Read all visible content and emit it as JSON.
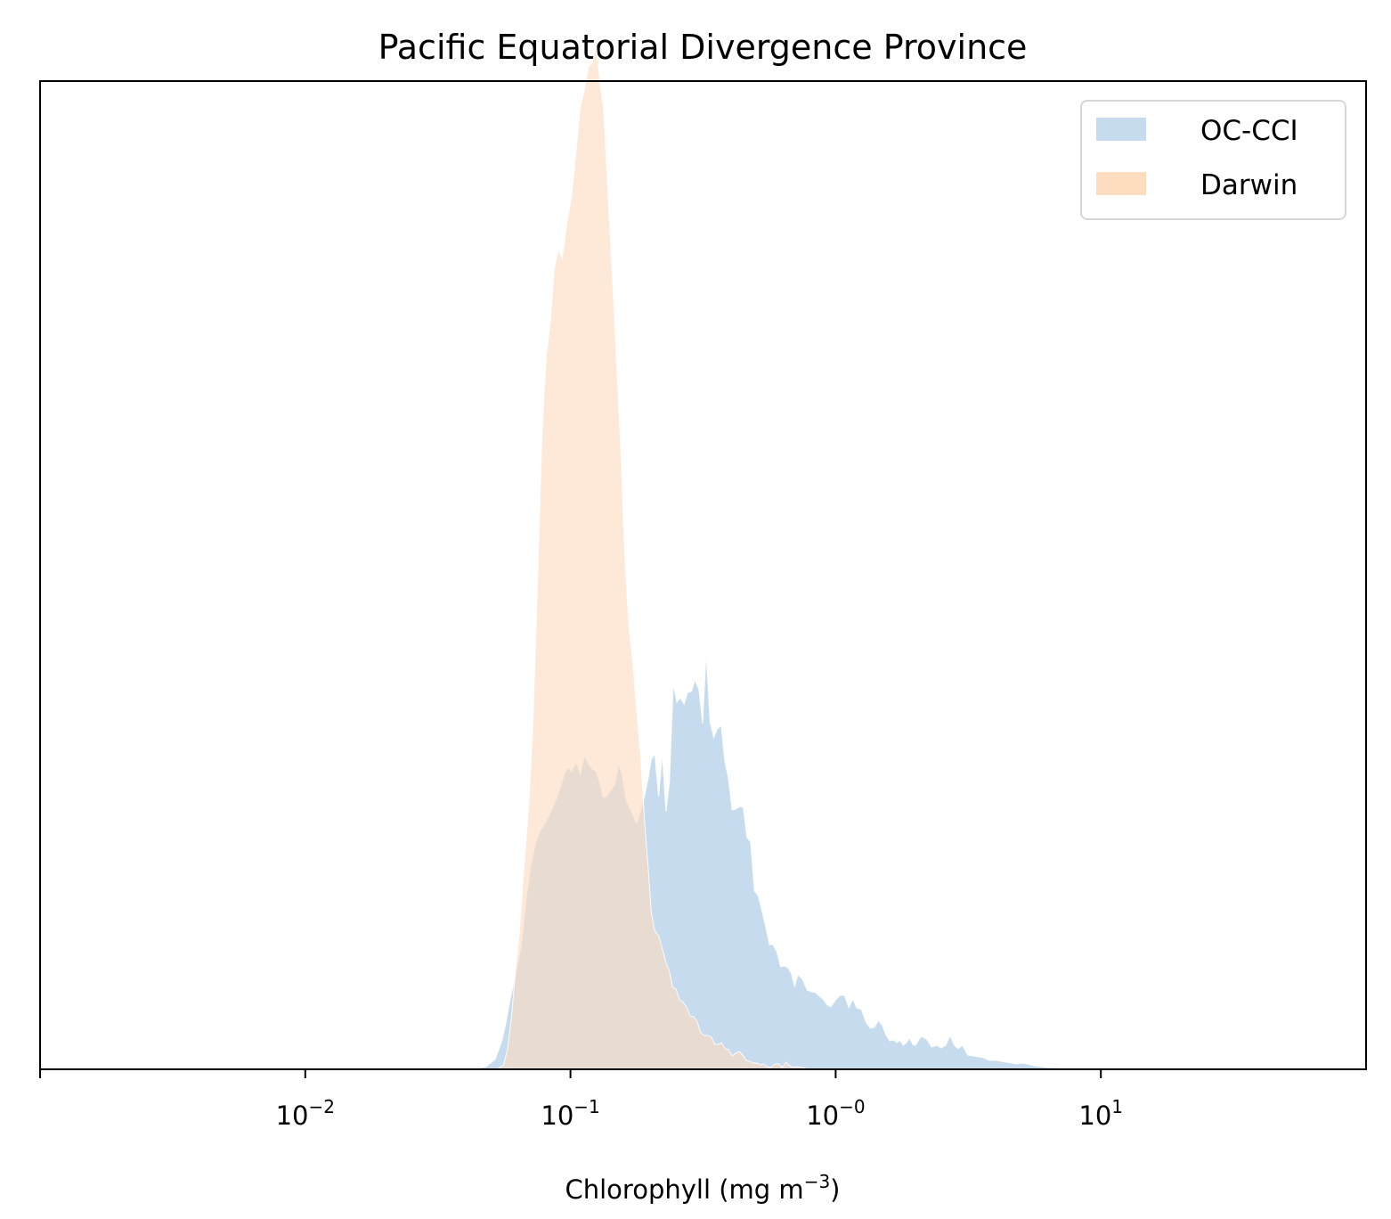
{
  "chart_data": {
    "type": "area",
    "title": "Pacific Equatorial Divergence Province",
    "xlabel": {
      "base": "Chlorophyll  (mg m",
      "exponent": "−3",
      "suffix": ")"
    },
    "ylabel": "",
    "xscale": "log",
    "xlim": [
      0.001,
      100
    ],
    "yticks_visible": false,
    "grid": false,
    "legend_position": "top-right",
    "x_ticks": [
      {
        "value": 0.01,
        "base": "10",
        "exponent": "−2"
      },
      {
        "value": 0.1,
        "base": "10",
        "exponent": "−1"
      },
      {
        "value": 1,
        "base": "10",
        "exponent": "−0"
      },
      {
        "value": 10,
        "base": "10",
        "exponent": "1"
      }
    ],
    "series": [
      {
        "name": "OC-CCI",
        "color": "#c6dbed",
        "points": [
          [
            0.03,
            0
          ],
          [
            0.044,
            1
          ],
          [
            0.048,
            3
          ],
          [
            0.052,
            11
          ],
          [
            0.055,
            31
          ],
          [
            0.057,
            51
          ],
          [
            0.059,
            76
          ],
          [
            0.061,
            96
          ],
          [
            0.063,
            116
          ],
          [
            0.065,
            136
          ],
          [
            0.068,
            190
          ],
          [
            0.071,
            230
          ],
          [
            0.074,
            255
          ],
          [
            0.077,
            268
          ],
          [
            0.08,
            275
          ],
          [
            0.083,
            285
          ],
          [
            0.086,
            295
          ],
          [
            0.089,
            305
          ],
          [
            0.092,
            318
          ],
          [
            0.095,
            332
          ],
          [
            0.098,
            339
          ],
          [
            0.101,
            334
          ],
          [
            0.105,
            345
          ],
          [
            0.109,
            331
          ],
          [
            0.113,
            352
          ],
          [
            0.117,
            343
          ],
          [
            0.121,
            337
          ],
          [
            0.125,
            334
          ],
          [
            0.129,
            322
          ],
          [
            0.133,
            305
          ],
          [
            0.137,
            306
          ],
          [
            0.142,
            313
          ],
          [
            0.147,
            320
          ],
          [
            0.152,
            343
          ],
          [
            0.157,
            330
          ],
          [
            0.162,
            302
          ],
          [
            0.167,
            294
          ],
          [
            0.172,
            285
          ],
          [
            0.178,
            276
          ],
          [
            0.184,
            291
          ],
          [
            0.19,
            306
          ],
          [
            0.196,
            325
          ],
          [
            0.202,
            348
          ],
          [
            0.208,
            354
          ],
          [
            0.215,
            306
          ],
          [
            0.222,
            354
          ],
          [
            0.229,
            289
          ],
          [
            0.236,
            322
          ],
          [
            0.244,
            432
          ],
          [
            0.252,
            412
          ],
          [
            0.26,
            417
          ],
          [
            0.268,
            410
          ],
          [
            0.277,
            423
          ],
          [
            0.286,
            424
          ],
          [
            0.295,
            437
          ],
          [
            0.305,
            426
          ],
          [
            0.315,
            388
          ],
          [
            0.325,
            468
          ],
          [
            0.336,
            390
          ],
          [
            0.347,
            372
          ],
          [
            0.358,
            382
          ],
          [
            0.37,
            386
          ],
          [
            0.382,
            346
          ],
          [
            0.394,
            327
          ],
          [
            0.407,
            291
          ],
          [
            0.42,
            292
          ],
          [
            0.434,
            295
          ],
          [
            0.448,
            294
          ],
          [
            0.463,
            260
          ],
          [
            0.478,
            255
          ],
          [
            0.494,
            200
          ],
          [
            0.51,
            195
          ],
          [
            0.527,
            178
          ],
          [
            0.544,
            161
          ],
          [
            0.562,
            140
          ],
          [
            0.58,
            140
          ],
          [
            0.6,
            132
          ],
          [
            0.62,
            115
          ],
          [
            0.64,
            116
          ],
          [
            0.66,
            114
          ],
          [
            0.68,
            108
          ],
          [
            0.7,
            93
          ],
          [
            0.72,
            106
          ],
          [
            0.75,
            101
          ],
          [
            0.78,
            89
          ],
          [
            0.81,
            87
          ],
          [
            0.84,
            86
          ],
          [
            0.87,
            82
          ],
          [
            0.9,
            78
          ],
          [
            0.93,
            72
          ],
          [
            0.96,
            70
          ],
          [
            1.0,
            78
          ],
          [
            1.04,
            83
          ],
          [
            1.08,
            83
          ],
          [
            1.12,
            69
          ],
          [
            1.16,
            79
          ],
          [
            1.2,
            69
          ],
          [
            1.25,
            67
          ],
          [
            1.3,
            53
          ],
          [
            1.35,
            46
          ],
          [
            1.4,
            47
          ],
          [
            1.45,
            55
          ],
          [
            1.5,
            49
          ],
          [
            1.55,
            38
          ],
          [
            1.6,
            32
          ],
          [
            1.65,
            33
          ],
          [
            1.7,
            30
          ],
          [
            1.75,
            32
          ],
          [
            1.8,
            27
          ],
          [
            1.85,
            30
          ],
          [
            1.9,
            35
          ],
          [
            1.95,
            28
          ],
          [
            2.0,
            27
          ],
          [
            2.1,
            37
          ],
          [
            2.2,
            34
          ],
          [
            2.3,
            25
          ],
          [
            2.4,
            27
          ],
          [
            2.5,
            24
          ],
          [
            2.6,
            27
          ],
          [
            2.7,
            38
          ],
          [
            2.8,
            27
          ],
          [
            2.9,
            23
          ],
          [
            3.0,
            27
          ],
          [
            3.15,
            16
          ],
          [
            3.3,
            15
          ],
          [
            3.45,
            14
          ],
          [
            3.6,
            13
          ],
          [
            3.8,
            10
          ],
          [
            4.0,
            10
          ],
          [
            4.2,
            9
          ],
          [
            4.4,
            8
          ],
          [
            4.6,
            7
          ],
          [
            4.8,
            6
          ],
          [
            5.0,
            7
          ],
          [
            5.3,
            6
          ],
          [
            5.6,
            4
          ],
          [
            6.0,
            3
          ],
          [
            6.4,
            2
          ],
          [
            6.8,
            2
          ],
          [
            7.2,
            1
          ],
          [
            7.7,
            1
          ],
          [
            8.2,
            1
          ],
          [
            8.7,
            1
          ],
          [
            9.3,
            1
          ],
          [
            10.0,
            0
          ]
        ]
      },
      {
        "name": "Darwin",
        "color": "#fddcc0",
        "points": [
          [
            0.04,
            0
          ],
          [
            0.053,
            0
          ],
          [
            0.056,
            5
          ],
          [
            0.058,
            24
          ],
          [
            0.06,
            60
          ],
          [
            0.062,
            110
          ],
          [
            0.064,
            150
          ],
          [
            0.066,
            206
          ],
          [
            0.068,
            255
          ],
          [
            0.07,
            310
          ],
          [
            0.072,
            380
          ],
          [
            0.075,
            540
          ],
          [
            0.078,
            710
          ],
          [
            0.081,
            800
          ],
          [
            0.084,
            840
          ],
          [
            0.087,
            900
          ],
          [
            0.09,
            920
          ],
          [
            0.093,
            910
          ],
          [
            0.097,
            950
          ],
          [
            0.101,
            980
          ],
          [
            0.105,
            1030
          ],
          [
            0.109,
            1080
          ],
          [
            0.113,
            1100
          ],
          [
            0.117,
            1125
          ],
          [
            0.121,
            1130
          ],
          [
            0.125,
            1150
          ],
          [
            0.129,
            1110
          ],
          [
            0.133,
            1080
          ],
          [
            0.137,
            1010
          ],
          [
            0.141,
            940
          ],
          [
            0.145,
            870
          ],
          [
            0.15,
            780
          ],
          [
            0.155,
            690
          ],
          [
            0.16,
            580
          ],
          [
            0.166,
            498
          ],
          [
            0.172,
            455
          ],
          [
            0.178,
            400
          ],
          [
            0.184,
            350
          ],
          [
            0.19,
            280
          ],
          [
            0.196,
            230
          ],
          [
            0.202,
            175
          ],
          [
            0.208,
            155
          ],
          [
            0.215,
            150
          ],
          [
            0.222,
            135
          ],
          [
            0.229,
            120
          ],
          [
            0.236,
            110
          ],
          [
            0.243,
            92
          ],
          [
            0.25,
            90
          ],
          [
            0.258,
            78
          ],
          [
            0.266,
            75
          ],
          [
            0.274,
            70
          ],
          [
            0.282,
            60
          ],
          [
            0.291,
            59
          ],
          [
            0.3,
            54
          ],
          [
            0.31,
            41
          ],
          [
            0.32,
            38
          ],
          [
            0.33,
            38
          ],
          [
            0.34,
            36
          ],
          [
            0.35,
            28
          ],
          [
            0.36,
            28
          ],
          [
            0.371,
            30
          ],
          [
            0.383,
            23
          ],
          [
            0.395,
            22
          ],
          [
            0.407,
            15
          ],
          [
            0.42,
            18
          ],
          [
            0.433,
            20
          ],
          [
            0.446,
            16
          ],
          [
            0.46,
            10
          ],
          [
            0.474,
            9
          ],
          [
            0.49,
            7
          ],
          [
            0.505,
            7
          ],
          [
            0.52,
            5
          ],
          [
            0.536,
            6
          ],
          [
            0.552,
            3
          ],
          [
            0.57,
            2
          ],
          [
            0.59,
            6
          ],
          [
            0.61,
            6
          ],
          [
            0.63,
            2
          ],
          [
            0.65,
            8
          ],
          [
            0.67,
            4
          ],
          [
            0.69,
            2
          ],
          [
            0.71,
            3
          ],
          [
            0.74,
            2
          ],
          [
            0.77,
            1
          ],
          [
            0.8,
            0
          ]
        ]
      }
    ]
  }
}
